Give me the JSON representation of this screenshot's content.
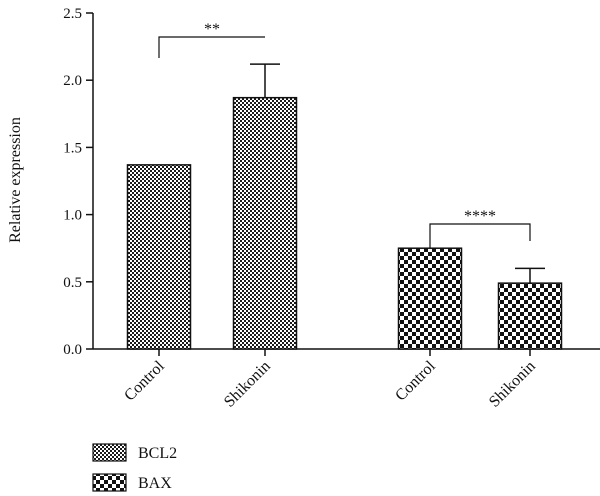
{
  "chart_data": {
    "type": "bar",
    "ylabel": "Relative expression",
    "ylim": [
      0,
      2.5
    ],
    "yticks": [
      "0.0",
      "0.5",
      "1.0",
      "1.5",
      "2.0",
      "2.5"
    ],
    "groups": [
      {
        "series": "BCL2",
        "pattern": "fine-checker",
        "bars": [
          {
            "category": "Control",
            "value": 1.37,
            "error": 0
          },
          {
            "category": "Shikonin",
            "value": 1.87,
            "error": 0.25
          }
        ],
        "significance": "**"
      },
      {
        "series": "BAX",
        "pattern": "coarse-checker",
        "bars": [
          {
            "category": "Control",
            "value": 0.75,
            "error": 0
          },
          {
            "category": "Shikonin",
            "value": 0.49,
            "error": 0.11
          }
        ],
        "significance": "****"
      }
    ],
    "legend": [
      {
        "label": "BCL2",
        "pattern": "fine-checker"
      },
      {
        "label": "BAX",
        "pattern": "coarse-checker"
      }
    ],
    "legend_position": "bottom-left",
    "grid": false
  }
}
